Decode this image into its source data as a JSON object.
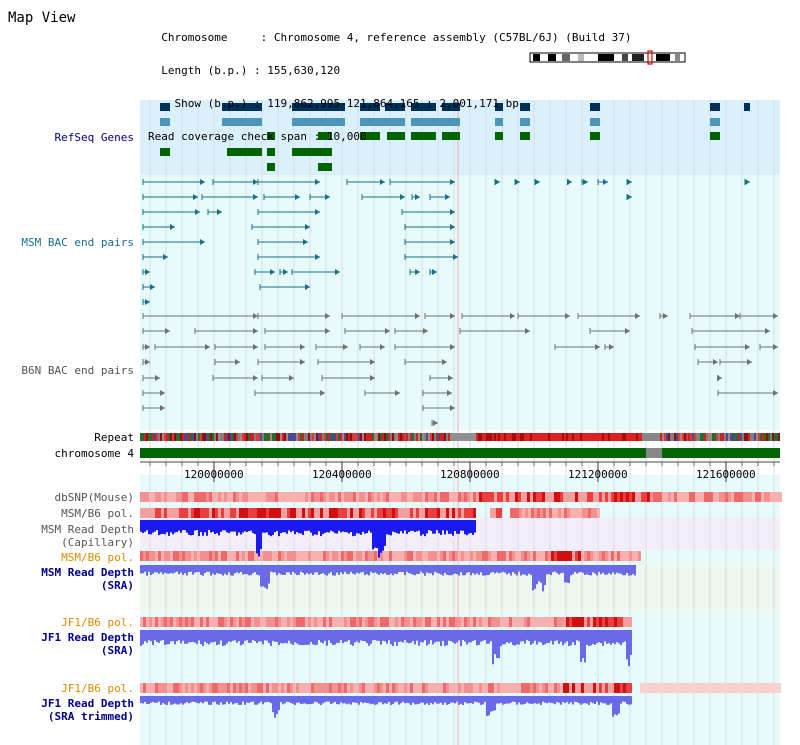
{
  "page_title": "Map View",
  "info": {
    "chromosome_label": "Chromosome",
    "chromosome_value": "Chromosome 4, reference assembly (C57BL/6J) (Build 37)",
    "length_label": "Length (b.p.)",
    "length_value": "155,630,120",
    "show_label": "Show (b.p.)",
    "show_value": "119,862,995-121,864,165 : 2,001,171 bp",
    "read_coverage_label": "Read coverage check span",
    "read_coverage_value": "10,000"
  },
  "tracks": {
    "refseq": "RefSeq Genes",
    "msm_bac": "MSM BAC end pairs",
    "b6n_bac": "B6N BAC end pairs",
    "repeat": "Repeat",
    "chromosome": "chromosome 4",
    "dbsnp": "dbSNP(Mouse)",
    "msm_b6_pol_1": "MSM/B6 pol.",
    "msm_read_depth_cap_1": "MSM Read Depth",
    "msm_read_depth_cap_2": "(Capillary)",
    "msm_b6_pol_2": "MSM/B6 pol.",
    "msm_read_depth_sra_1": "MSM Read Depth",
    "msm_read_depth_sra_2": "(SRA)",
    "jf1_b6_pol_1": "JF1/B6 pol.",
    "jf1_read_depth_sra_1": "JF1 Read Depth",
    "jf1_read_depth_sra_2": "(SRA)",
    "jf1_b6_pol_2": "JF1/B6 pol.",
    "jf1_read_depth_trim_1": "JF1 Read Depth",
    "jf1_read_depth_trim_2": "(SRA trimmed)"
  },
  "ruler": {
    "ticks": [
      "120000000",
      "120400000",
      "120800000",
      "121200000",
      "121600000"
    ]
  },
  "colors": {
    "refseq_bg": "#daf0fa",
    "main_bg": "#e8fbfb",
    "gene_dark_blue": "#00305a",
    "gene_mid_blue": "#4d95b9",
    "gene_green": "#006400",
    "msm_bac_line": "#1a6f89",
    "b6n_bac_line": "#707070",
    "chromosome_green": "#006400",
    "snp_red": "#e00000",
    "depth_blue_dark": "#1a1aee",
    "depth_blue_light": "#6a6ae8",
    "label_blue": "#00008b",
    "label_orange": "#e08a00",
    "label_teal": "#1a6f89",
    "label_gray": "#444444"
  }
}
